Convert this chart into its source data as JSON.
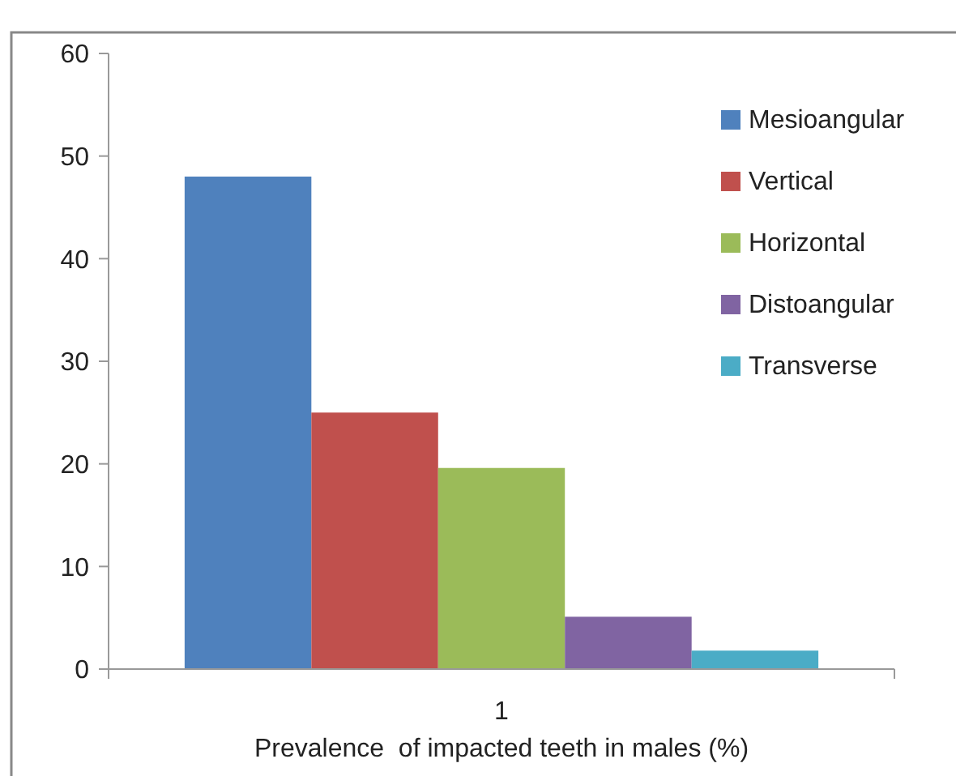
{
  "chart_data": {
    "type": "bar",
    "xlabel": "Prevalence  of impacted teeth in males (%)",
    "categories": [
      "1"
    ],
    "series": [
      {
        "name": "Mesioangular",
        "color": "#4f81bd",
        "values": [
          48
        ]
      },
      {
        "name": "Vertical",
        "color": "#c0504d",
        "values": [
          25
        ]
      },
      {
        "name": "Horizontal",
        "color": "#9bbb59",
        "values": [
          19.6
        ]
      },
      {
        "name": "Distoangular",
        "color": "#8064a2",
        "values": [
          5.1
        ]
      },
      {
        "name": "Transverse",
        "color": "#4bacc6",
        "values": [
          1.8
        ]
      }
    ],
    "ylim": [
      0,
      60
    ],
    "yticks": [
      0,
      10,
      20,
      30,
      40,
      50,
      60
    ],
    "grid": false,
    "legend": "top right"
  }
}
